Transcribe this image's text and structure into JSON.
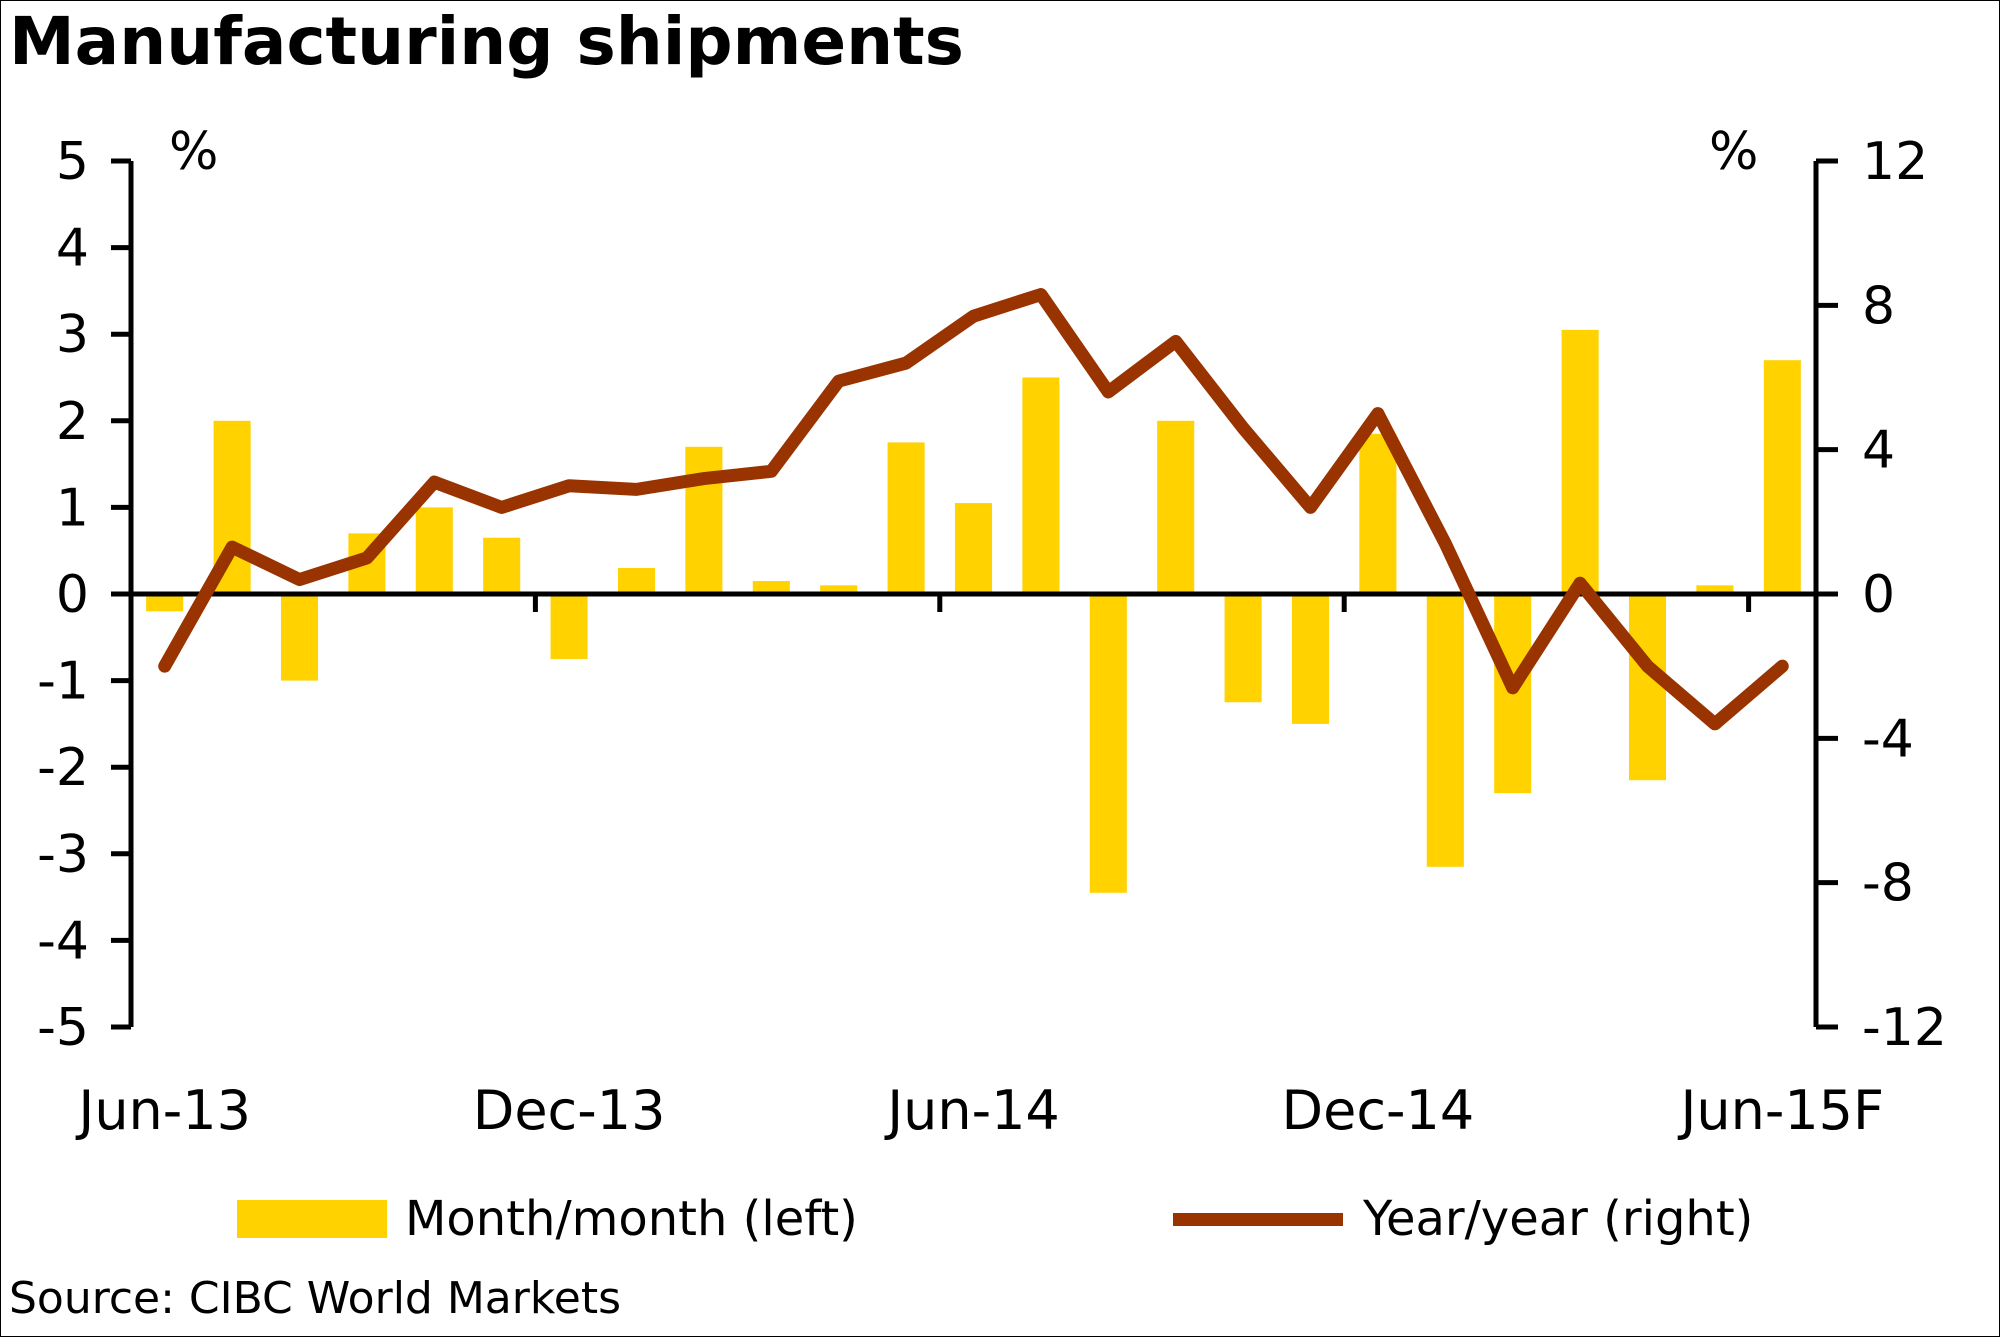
{
  "chart_data": {
    "type": "bar",
    "title": "Manufacturing shipments",
    "source": "Source: CIBC World Markets",
    "left_axis": {
      "unit": "%",
      "ylim": [
        -5,
        5
      ],
      "ticks": [
        5,
        4,
        3,
        2,
        1,
        0,
        -1,
        -2,
        -3,
        -4,
        -5
      ],
      "tick_labels": [
        "5",
        "4",
        "3",
        "2",
        "1",
        "0",
        "-1",
        "-2",
        "-3",
        "-4",
        "-5"
      ]
    },
    "right_axis": {
      "unit": "%",
      "ylim": [
        -12,
        12
      ],
      "ticks": [
        12,
        8,
        4,
        0,
        -4,
        -8,
        -12
      ],
      "tick_labels": [
        "12",
        "8",
        "4",
        "0",
        "-4",
        "-8",
        "-12"
      ]
    },
    "x_tick_labels": [
      "Jun-13",
      "Dec-13",
      "Jun-14",
      "Dec-14",
      "Jun-15F"
    ],
    "categories": [
      "Jun-13",
      "Jul-13",
      "Aug-13",
      "Sep-13",
      "Oct-13",
      "Nov-13",
      "Dec-13",
      "Jan-14",
      "Feb-14",
      "Mar-14",
      "Apr-14",
      "May-14",
      "Jun-14",
      "Jul-14",
      "Aug-14",
      "Sep-14",
      "Oct-14",
      "Nov-14",
      "Dec-14",
      "Jan-15",
      "Feb-15",
      "Mar-15",
      "Apr-15",
      "May-15",
      "Jun-15F"
    ],
    "series": [
      {
        "name": "Month/month (left)",
        "type": "bar",
        "axis": "left",
        "color": "#FFD200",
        "values": [
          -0.2,
          2.0,
          -1.0,
          0.7,
          1.0,
          0.65,
          -0.75,
          0.3,
          1.7,
          0.15,
          0.1,
          1.75,
          1.05,
          2.5,
          -3.45,
          2.0,
          -1.25,
          -1.5,
          1.85,
          -3.15,
          -2.3,
          3.05,
          -2.15,
          0.1,
          2.7
        ]
      },
      {
        "name": "Year/year (right)",
        "type": "line",
        "axis": "right",
        "color": "#993300",
        "values": [
          -2.0,
          1.3,
          0.4,
          1.0,
          3.1,
          2.4,
          3.0,
          2.9,
          3.2,
          3.4,
          5.9,
          6.4,
          7.7,
          8.3,
          5.6,
          7.0,
          4.6,
          2.4,
          5.0,
          1.4,
          -2.6,
          0.3,
          -2.0,
          -3.6,
          -2.0
        ]
      }
    ],
    "legend": {
      "position": "bottom",
      "items": [
        "Month/month (left)",
        "Year/year (right)"
      ]
    },
    "grid": false
  }
}
